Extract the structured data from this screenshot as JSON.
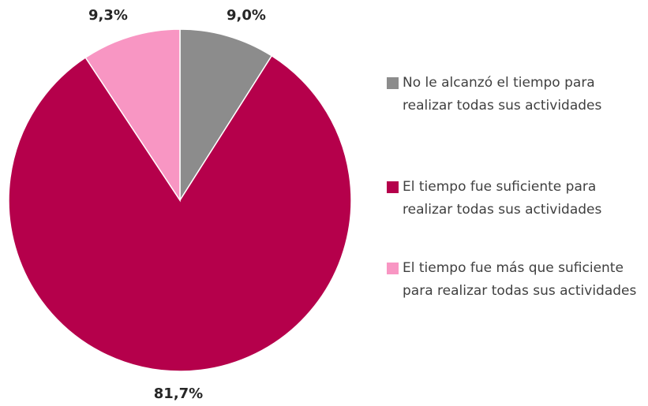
{
  "chart_data": {
    "type": "pie",
    "categories": [
      "No le alcanzó el tiempo para realizar todas sus actividades",
      "El tiempo fue suficiente para realizar todas sus actividades",
      "El tiempo fue más que suficiente para realizar todas sus actividades"
    ],
    "values": [
      9.0,
      81.7,
      9.3
    ],
    "value_labels": [
      "9,0%",
      "81,7%",
      "9,3%"
    ],
    "colors": [
      "#8c8c8c",
      "#b5004b",
      "#f896c3"
    ]
  }
}
